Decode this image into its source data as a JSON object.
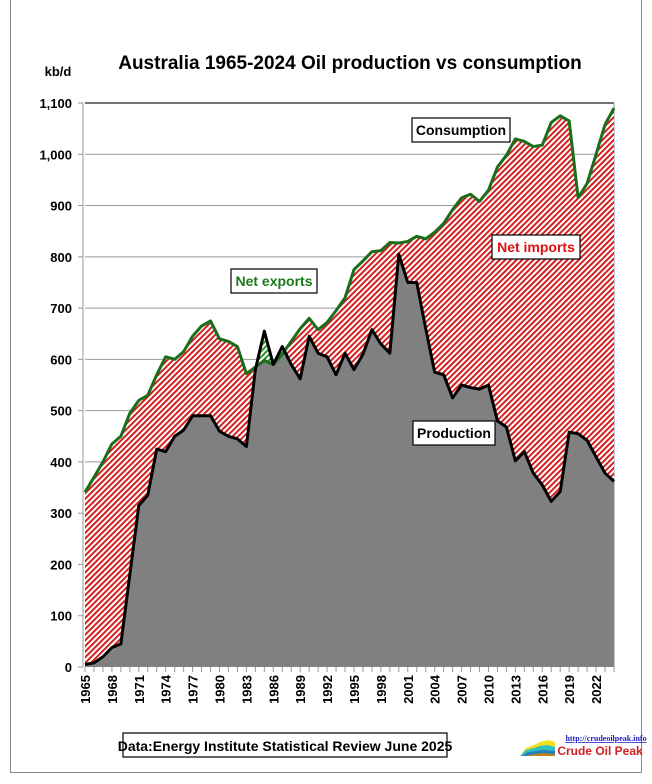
{
  "chart_data": {
    "type": "area",
    "title": "Australia 1965-2024 Oil production vs consumption",
    "ylabel": "kb/d",
    "xlabel": "",
    "ylim": [
      0,
      1100
    ],
    "yticks": [
      0,
      100,
      200,
      300,
      400,
      500,
      600,
      700,
      800,
      900,
      1000,
      1100
    ],
    "ytick_labels": [
      "0",
      "100",
      "200",
      "300",
      "400",
      "500",
      "600",
      "700",
      "800",
      "900",
      "1,000",
      "1,100"
    ],
    "xtick_labels": [
      "1965",
      "1968",
      "1971",
      "1974",
      "1977",
      "1980",
      "1983",
      "1986",
      "1989",
      "1992",
      "1995",
      "1998",
      "2001",
      "2004",
      "2007",
      "2010",
      "2013",
      "2016",
      "2019",
      "2022"
    ],
    "grid": true,
    "x": [
      1965,
      1966,
      1967,
      1968,
      1969,
      1970,
      1971,
      1972,
      1973,
      1974,
      1975,
      1976,
      1977,
      1978,
      1979,
      1980,
      1981,
      1982,
      1983,
      1984,
      1985,
      1986,
      1987,
      1988,
      1989,
      1990,
      1991,
      1992,
      1993,
      1994,
      1995,
      1996,
      1997,
      1998,
      1999,
      2000,
      2001,
      2002,
      2003,
      2004,
      2005,
      2006,
      2007,
      2008,
      2009,
      2010,
      2011,
      2012,
      2013,
      2014,
      2015,
      2016,
      2017,
      2018,
      2019,
      2020,
      2021,
      2022,
      2023,
      2024
    ],
    "series": [
      {
        "name": "Consumption",
        "color": "#1a6e1a",
        "values": [
          341,
          370,
          400,
          435,
          450,
          495,
          520,
          530,
          570,
          605,
          600,
          615,
          645,
          665,
          675,
          640,
          635,
          625,
          572,
          585,
          598,
          590,
          610,
          635,
          660,
          680,
          658,
          672,
          695,
          720,
          775,
          792,
          810,
          812,
          828,
          827,
          830,
          840,
          835,
          848,
          865,
          892,
          915,
          922,
          908,
          930,
          975,
          998,
          1030,
          1025,
          1015,
          1018,
          1062,
          1075,
          1065,
          915,
          943,
          1000,
          1058,
          1090
        ]
      },
      {
        "name": "Production",
        "color": "#000000",
        "values": [
          5,
          8,
          20,
          38,
          45,
          180,
          315,
          335,
          425,
          420,
          450,
          462,
          490,
          490,
          490,
          460,
          450,
          445,
          430,
          580,
          655,
          590,
          625,
          590,
          562,
          645,
          612,
          605,
          570,
          612,
          580,
          610,
          658,
          630,
          612,
          805,
          750,
          750,
          660,
          575,
          570,
          525,
          550,
          545,
          542,
          550,
          480,
          468,
          402,
          420,
          378,
          355,
          323,
          342,
          458,
          455,
          442,
          410,
          378,
          362
        ]
      }
    ],
    "annotations": [
      {
        "text": "Consumption",
        "color": "#000000"
      },
      {
        "text": "Net exports",
        "color": "#1a7a1a"
      },
      {
        "text": "Net imports",
        "color": "#e01010"
      },
      {
        "text": "Production",
        "color": "#000000"
      }
    ],
    "fills": {
      "production": "#808080",
      "net_imports": "#d42020",
      "net_exports": "#2a9a2a"
    }
  },
  "footer": {
    "source": "Data:Energy Institute Statistical Review June 2025",
    "logo_url_text": "http://crudeoilpeak.info",
    "logo_name": "Crude Oil Peak"
  }
}
